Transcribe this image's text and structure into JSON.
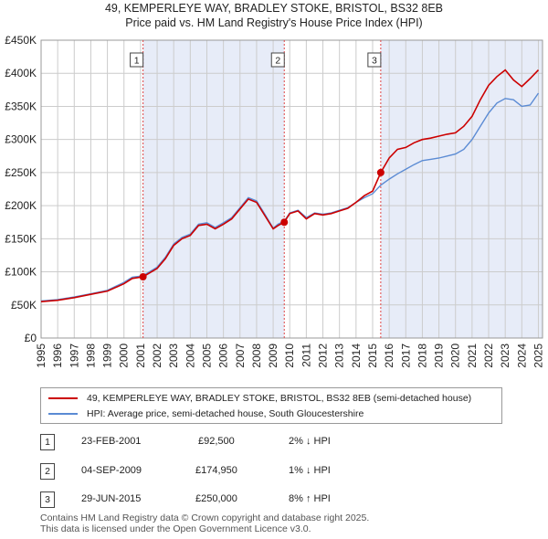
{
  "header": {
    "title_line1": "49, KEMPERLEYE WAY, BRADLEY STOKE, BRISTOL, BS32 8EB",
    "title_line2": "Price paid vs. HM Land Registry's House Price Index (HPI)"
  },
  "colors": {
    "property": "#cc0000",
    "hpi": "#5b8bd4",
    "shade": "#dde4f5",
    "grid": "#cccccc"
  },
  "legend": {
    "property_label": "49, KEMPERLEYE WAY, BRADLEY STOKE, BRISTOL, BS32 8EB (semi-detached house)",
    "hpi_label": "HPI: Average price, semi-detached house, South Gloucestershire"
  },
  "sales": [
    {
      "num": "1",
      "date": "23-FEB-2001",
      "price": "£92,500",
      "hpi_delta": "2% ↓ HPI"
    },
    {
      "num": "2",
      "date": "04-SEP-2009",
      "price": "£174,950",
      "hpi_delta": "1% ↓ HPI"
    },
    {
      "num": "3",
      "date": "29-JUN-2015",
      "price": "£250,000",
      "hpi_delta": "8% ↑ HPI"
    }
  ],
  "footer": {
    "line1": "Contains HM Land Registry data © Crown copyright and database right 2025.",
    "line2": "This data is licensed under the Open Government Licence v3.0."
  },
  "chart_data": {
    "type": "line",
    "xlim": [
      1995,
      2025.25
    ],
    "ylim": [
      0,
      450000
    ],
    "y_ticks": [
      0,
      50000,
      100000,
      150000,
      200000,
      250000,
      300000,
      350000,
      400000,
      450000
    ],
    "y_tick_labels": [
      "£0",
      "£50K",
      "£100K",
      "£150K",
      "£200K",
      "£250K",
      "£300K",
      "£350K",
      "£400K",
      "£450K"
    ],
    "x_ticks": [
      1995,
      1996,
      1997,
      1998,
      1999,
      2000,
      2001,
      2002,
      2003,
      2004,
      2005,
      2006,
      2007,
      2008,
      2009,
      2010,
      2011,
      2012,
      2013,
      2014,
      2015,
      2016,
      2017,
      2018,
      2019,
      2020,
      2021,
      2022,
      2023,
      2024,
      2025
    ],
    "x_tick_labels": [
      "1995",
      "1996",
      "1997",
      "1998",
      "1999",
      "2000",
      "2001",
      "2002",
      "2003",
      "2004",
      "2005",
      "2006",
      "2007",
      "2008",
      "2009",
      "2010",
      "2011",
      "2012",
      "2013",
      "2014",
      "2015",
      "2016",
      "2017",
      "2018",
      "2019",
      "2020",
      "2021",
      "2022",
      "2023",
      "2024",
      "2025"
    ],
    "shaded_ranges": [
      [
        2001.15,
        2009.67
      ],
      [
        2015.49,
        2025.25
      ]
    ],
    "markers": [
      {
        "label": "1",
        "x": 2001.15,
        "y": 92500
      },
      {
        "label": "2",
        "x": 2009.67,
        "y": 174950
      },
      {
        "label": "3",
        "x": 2015.49,
        "y": 250000
      }
    ],
    "series": [
      {
        "name": "49, KEMPERLEYE WAY, BRADLEY STOKE, BRISTOL, BS32 8EB (semi-detached house)",
        "x": [
          1995,
          1996,
          1997,
          1998,
          1999,
          2000,
          2000.5,
          2001.15,
          2002,
          2002.5,
          2003,
          2003.5,
          2004,
          2004.5,
          2005,
          2005.5,
          2006,
          2006.5,
          2007,
          2007.5,
          2008,
          2008.5,
          2009,
          2009.3,
          2009.67,
          2010,
          2010.5,
          2011,
          2011.5,
          2012,
          2012.5,
          2013,
          2013.5,
          2014,
          2014.5,
          2015,
          2015.49,
          2016,
          2016.5,
          2017,
          2017.5,
          2018,
          2018.5,
          2019,
          2019.5,
          2020,
          2020.5,
          2021,
          2021.5,
          2022,
          2022.5,
          2023,
          2023.5,
          2024,
          2024.5,
          2025
        ],
        "values": [
          55000,
          57000,
          61000,
          66000,
          71000,
          82000,
          90000,
          92500,
          105000,
          120000,
          140000,
          150000,
          155000,
          170000,
          172000,
          165000,
          172000,
          180000,
          195000,
          210000,
          205000,
          185000,
          165000,
          170000,
          174950,
          188000,
          192000,
          180000,
          188000,
          186000,
          188000,
          192000,
          196000,
          205000,
          215000,
          222000,
          250000,
          272000,
          285000,
          288000,
          295000,
          300000,
          302000,
          305000,
          308000,
          310000,
          320000,
          335000,
          360000,
          382000,
          395000,
          405000,
          390000,
          380000,
          392000,
          405000
        ]
      },
      {
        "name": "HPI: Average price, semi-detached house, South Gloucestershire",
        "x": [
          1995,
          1996,
          1997,
          1998,
          1999,
          2000,
          2000.5,
          2001.15,
          2002,
          2002.5,
          2003,
          2003.5,
          2004,
          2004.5,
          2005,
          2005.5,
          2006,
          2006.5,
          2007,
          2007.5,
          2008,
          2008.5,
          2009,
          2009.3,
          2009.67,
          2010,
          2010.5,
          2011,
          2011.5,
          2012,
          2012.5,
          2013,
          2013.5,
          2014,
          2014.5,
          2015,
          2015.49,
          2016,
          2016.5,
          2017,
          2017.5,
          2018,
          2018.5,
          2019,
          2019.5,
          2020,
          2020.5,
          2021,
          2021.5,
          2022,
          2022.5,
          2023,
          2023.5,
          2024,
          2024.5,
          2025
        ],
        "values": [
          56000,
          58000,
          62000,
          67000,
          72000,
          84000,
          92000,
          94000,
          107000,
          122000,
          142000,
          152000,
          157000,
          172000,
          174000,
          167000,
          174000,
          182000,
          197000,
          212000,
          207000,
          187000,
          166000,
          172000,
          176500,
          189000,
          193000,
          182000,
          189000,
          187000,
          189000,
          193000,
          197000,
          205000,
          212000,
          218000,
          231000,
          240000,
          248000,
          255000,
          262000,
          268000,
          270000,
          272000,
          275000,
          278000,
          285000,
          300000,
          320000,
          340000,
          355000,
          362000,
          360000,
          350000,
          352000,
          370000
        ]
      }
    ]
  }
}
